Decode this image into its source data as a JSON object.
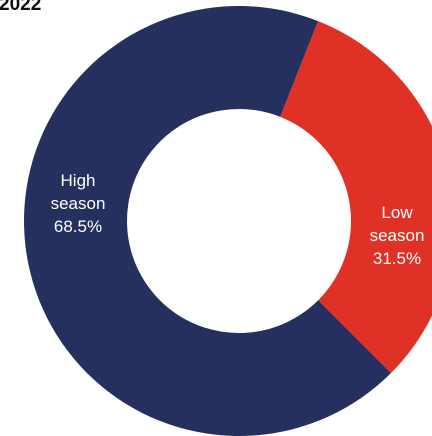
{
  "chart_data": {
    "type": "pie",
    "variant": "donut",
    "title": "2022",
    "slices": [
      {
        "name": "High season",
        "label_lines": [
          "High",
          "season",
          "68.5%"
        ],
        "value": 68.5,
        "color": "#25305e"
      },
      {
        "name": "Low season",
        "label_lines": [
          "Low",
          "season",
          "31.5%"
        ],
        "value": 31.5,
        "color": "#e03126"
      }
    ]
  }
}
